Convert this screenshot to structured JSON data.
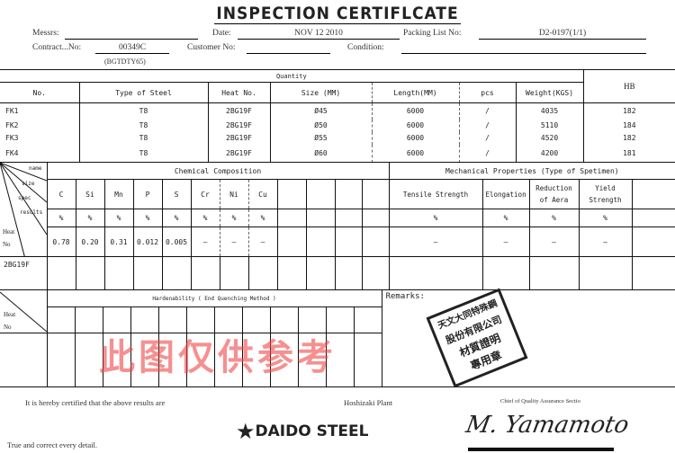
{
  "title": "INSPECTION CERTIFLCATE",
  "header": {
    "messrs_label": "Messrs:",
    "messrs_value": "",
    "date_label": "Date:",
    "date_value": "NOV  12   2010",
    "packing_label": "Packing List  No:",
    "packing_value": "D2-0197(1/1)",
    "contract_label": "Contract...No:",
    "contract_value": "00349C",
    "contract_sub": "(BGTDTY65)",
    "customer_label": "Customer No:",
    "customer_value": "",
    "condition_label": "Condition:",
    "condition_value": ""
  },
  "products": {
    "group_label": "Quantity",
    "columns": [
      "No.",
      "Type of Steel",
      "Heat No.",
      "Size (MM)",
      "Length(MM)",
      "pcs",
      "Weight(KGS)",
      "HB"
    ],
    "rows": [
      [
        "FK1",
        "T8",
        "2BG19F",
        "Ø45",
        "6000",
        "/",
        "4035",
        "182"
      ],
      [
        "FK2",
        "T8",
        "2BG19F",
        "Ø50",
        "6000",
        "/",
        "5110",
        "184"
      ],
      [
        "FK3",
        "T8",
        "2BG19F",
        "Ø55",
        "6000",
        "/",
        "4520",
        "182"
      ],
      [
        "FK4",
        "T8",
        "2BG19F",
        "Ø60",
        "6000",
        "/",
        "4200",
        "181"
      ]
    ]
  },
  "chem": {
    "corner": [
      "name",
      "size",
      "spec",
      "results",
      "Heat No"
    ],
    "title": "Chemical Composition",
    "elements": [
      "C",
      "Si",
      "Mn",
      "P",
      "S",
      "Cr",
      "Ni",
      "Cu",
      "",
      "",
      "",
      ""
    ],
    "units": [
      "%",
      "%",
      "%",
      "%",
      "%",
      "%",
      "%",
      "%",
      "",
      "",
      "",
      ""
    ],
    "values": [
      "0.78",
      "0.20",
      "0.31",
      "0.012",
      "0.005",
      "–",
      "–",
      "–",
      "",
      "",
      "",
      ""
    ],
    "heat_no": "2BG19F"
  },
  "mech": {
    "title": "Mechanical Properties  (Type of Spetimen)",
    "columns": [
      "Tensile Strength",
      "Elongation",
      "Reduction of Aera",
      "Yield Strength",
      ""
    ],
    "units": [
      "%",
      "%",
      "%",
      "%",
      ""
    ],
    "values": [
      "–",
      "–",
      "–",
      "–",
      ""
    ]
  },
  "hard": {
    "title": "Hardenability ( End Quenching Method )",
    "heat_label": "Heat No",
    "remarks_label": "Remarks:"
  },
  "footer": {
    "certify": "It is hereby certified   that the above results are",
    "true": "True and correct every detail.",
    "plant": "Hoshizaki Plant",
    "chief": "Chief of Quality Assurance Sectio",
    "signature": "M. Yamamoto",
    "logo": "DAIDO STEEL"
  },
  "stamp": [
    "天文大同特殊鋼",
    "股份有限公司",
    "材質證明",
    "專用章"
  ],
  "watermark": "此图仅供参考",
  "colors": {
    "watermark": "#f04646"
  }
}
